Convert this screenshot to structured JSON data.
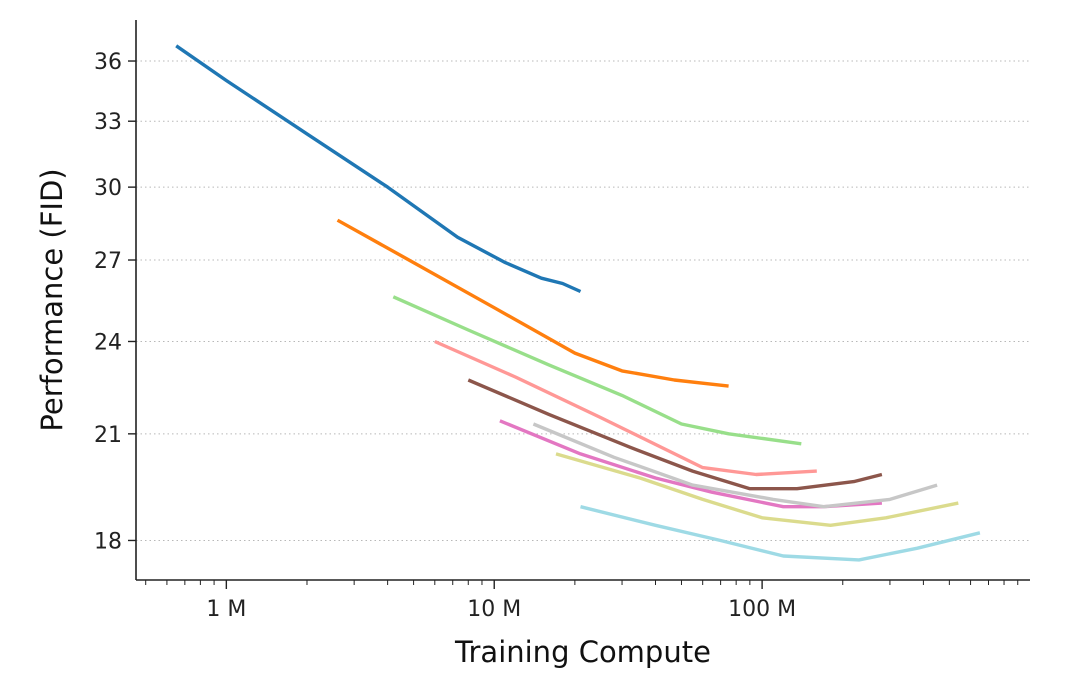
{
  "chart_data": {
    "type": "line",
    "title": "",
    "xlabel": "Training Compute",
    "ylabel": "Performance (FID)",
    "x_scale": "log",
    "y_scale": "log",
    "xlim": [
      460000,
      1000000000
    ],
    "ylim": [
      17,
      38.2
    ],
    "x_ticks": [
      {
        "value": 1000000,
        "label": "1 M"
      },
      {
        "value": 10000000,
        "label": "10 M"
      },
      {
        "value": 100000000,
        "label": "100 M"
      }
    ],
    "y_ticks": [
      18,
      21,
      24,
      27,
      30,
      33,
      36
    ],
    "grid": {
      "y": true,
      "style": "dotted",
      "x": false
    },
    "legend": "none",
    "series": [
      {
        "color": "#1f77b4",
        "points": [
          [
            650000,
            36.8
          ],
          [
            1000000,
            35.0
          ],
          [
            2000000,
            32.4
          ],
          [
            4000000,
            30.0
          ],
          [
            7300000,
            27.9
          ],
          [
            11000000,
            26.9
          ],
          [
            15000000,
            26.3
          ],
          [
            18000000,
            26.1
          ],
          [
            21000000,
            25.8
          ]
        ]
      },
      {
        "color": "#ff7f0e",
        "points": [
          [
            2600000,
            28.6
          ],
          [
            5000000,
            26.9
          ],
          [
            10000000,
            25.2
          ],
          [
            20000000,
            23.6
          ],
          [
            30000000,
            23.0
          ],
          [
            47000000,
            22.7
          ],
          [
            75000000,
            22.5
          ]
        ]
      },
      {
        "color": "#98df8a",
        "points": [
          [
            4200000,
            25.6
          ],
          [
            8000000,
            24.4
          ],
          [
            16000000,
            23.2
          ],
          [
            30000000,
            22.2
          ],
          [
            50000000,
            21.3
          ],
          [
            75000000,
            21.0
          ],
          [
            140000000,
            20.7
          ]
        ]
      },
      {
        "color": "#ff9896",
        "points": [
          [
            6000000,
            24.0
          ],
          [
            12000000,
            22.8
          ],
          [
            25000000,
            21.5
          ],
          [
            60000000,
            20.0
          ],
          [
            95000000,
            19.8
          ],
          [
            160000000,
            19.9
          ]
        ]
      },
      {
        "color": "#8c564b",
        "points": [
          [
            8000000,
            22.7
          ],
          [
            16000000,
            21.6
          ],
          [
            32000000,
            20.6
          ],
          [
            55000000,
            19.9
          ],
          [
            90000000,
            19.4
          ],
          [
            135000000,
            19.4
          ],
          [
            220000000,
            19.6
          ],
          [
            280000000,
            19.8
          ]
        ]
      },
      {
        "color": "#e377c2",
        "points": [
          [
            10500000,
            21.4
          ],
          [
            21000000,
            20.4
          ],
          [
            40000000,
            19.7
          ],
          [
            65000000,
            19.3
          ],
          [
            120000000,
            18.9
          ],
          [
            170000000,
            18.9
          ],
          [
            280000000,
            19.0
          ]
        ]
      },
      {
        "color": "#c7c7c7",
        "points": [
          [
            14000000,
            21.3
          ],
          [
            28000000,
            20.3
          ],
          [
            55000000,
            19.5
          ],
          [
            110000000,
            19.1
          ],
          [
            170000000,
            18.9
          ],
          [
            300000000,
            19.1
          ],
          [
            450000000,
            19.5
          ]
        ]
      },
      {
        "color": "#dbdb8d",
        "points": [
          [
            17000000,
            20.4
          ],
          [
            35000000,
            19.7
          ],
          [
            60000000,
            19.1
          ],
          [
            100000000,
            18.6
          ],
          [
            180000000,
            18.4
          ],
          [
            290000000,
            18.6
          ],
          [
            540000000,
            19.0
          ]
        ]
      },
      {
        "color": "#9edae5",
        "points": [
          [
            21000000,
            18.9
          ],
          [
            40000000,
            18.4
          ],
          [
            70000000,
            18.0
          ],
          [
            120000000,
            17.6
          ],
          [
            230000000,
            17.5
          ],
          [
            380000000,
            17.8
          ],
          [
            650000000,
            18.2
          ]
        ]
      }
    ]
  }
}
